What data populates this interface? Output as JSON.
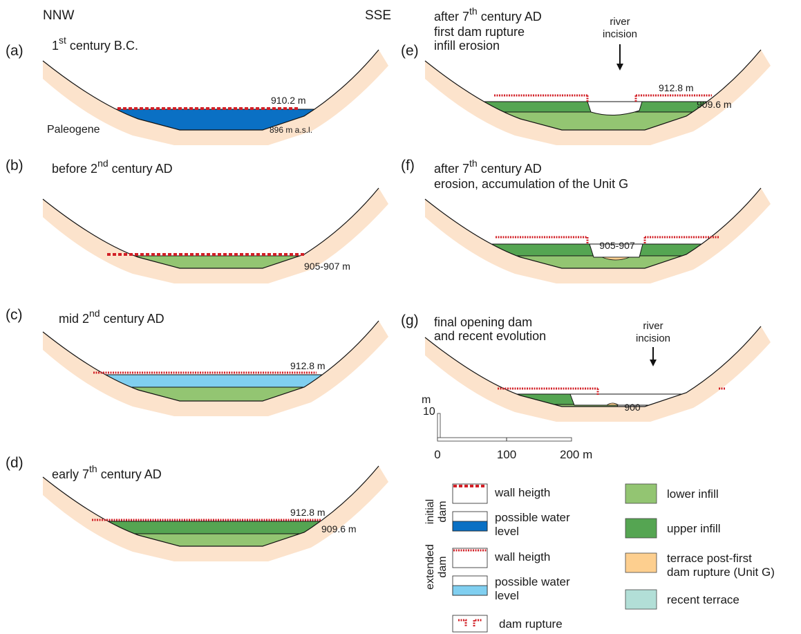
{
  "orientation": {
    "left": "NNW",
    "right": "SSE"
  },
  "panels": [
    {
      "label": "(a)",
      "title": [
        {
          "pre": "1",
          "sup": "st",
          "post": " century B.C."
        }
      ],
      "notes": [
        "910.2 m",
        "896 m a.s.l.",
        "Paleogene"
      ]
    },
    {
      "label": "(b)",
      "title": [
        {
          "pre": "before 2",
          "sup": "nd",
          "post": " century AD"
        }
      ],
      "notes": [
        "905-907 m"
      ]
    },
    {
      "label": "(c)",
      "title": [
        {
          "pre": "mid 2",
          "sup": "nd",
          "post": " century AD"
        }
      ],
      "notes": [
        "912.8 m"
      ]
    },
    {
      "label": "(d)",
      "title": [
        {
          "pre": "early 7",
          "sup": "th",
          "post": " century AD"
        }
      ],
      "notes": [
        "912.8 m",
        "909.6 m"
      ]
    },
    {
      "label": "(e)",
      "title": [
        {
          "pre": "after 7",
          "sup": "th",
          "post": " century AD"
        },
        "first dam rupture",
        "infill erosion"
      ],
      "notes": [
        "river",
        "incision",
        "912.8 m",
        "909.6 m"
      ]
    },
    {
      "label": "(f)",
      "title": [
        {
          "pre": "after 7",
          "sup": "th",
          "post": " century AD"
        },
        "erosion, accumulation of the Unit G"
      ],
      "notes": [
        "905-907"
      ]
    },
    {
      "label": "(g)",
      "title": [
        "final opening dam",
        "and recent evolution"
      ],
      "notes": [
        "river",
        "incision",
        "900"
      ]
    }
  ],
  "scale": {
    "unit": "m",
    "vertical": "10",
    "horizontal": [
      "0",
      "100",
      "200 m"
    ]
  },
  "legend": {
    "groups": [
      {
        "name": [
          "initial",
          "dam"
        ],
        "items": [
          [
            "wall heigth"
          ],
          [
            "possible water",
            "level"
          ]
        ]
      },
      {
        "name": [
          "extended",
          "dam"
        ],
        "items": [
          [
            "wall heigth"
          ],
          [
            "possible water",
            "level"
          ]
        ]
      }
    ],
    "rupture": "dam rupture",
    "fills": [
      [
        "lower infill"
      ],
      [
        "upper infill"
      ],
      [
        "terrace post-first",
        "dam rupture (Unit G)"
      ],
      [
        "recent terrace"
      ]
    ]
  }
}
